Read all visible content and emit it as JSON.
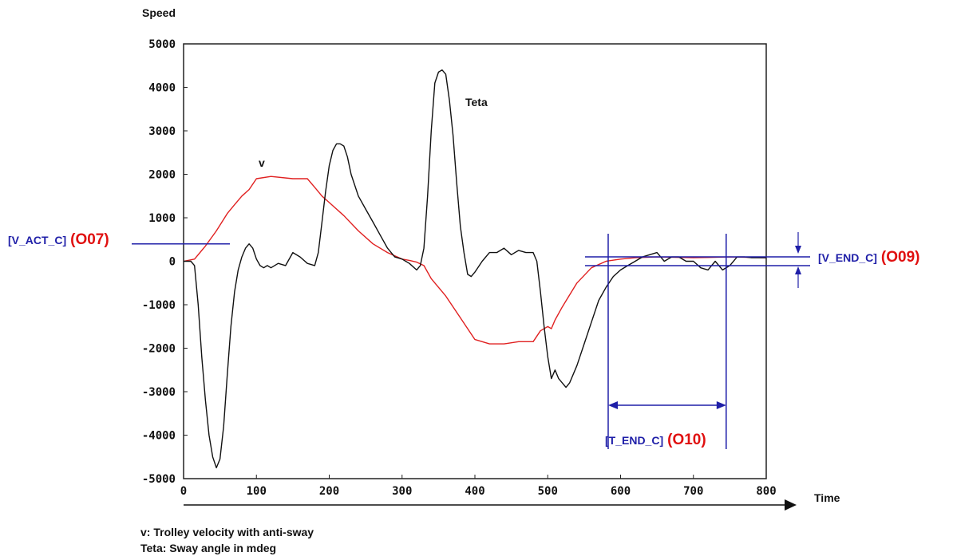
{
  "chart_data": {
    "type": "line",
    "ylabel": "Speed",
    "xlabel": "Time",
    "xlim": [
      0,
      800
    ],
    "ylim": [
      -5000,
      5000
    ],
    "xticks": [
      "0",
      "100",
      "200",
      "300",
      "400",
      "500",
      "600",
      "700",
      "800"
    ],
    "yticks": [
      "5000",
      "4000",
      "3000",
      "2000",
      "1000",
      "0",
      "-1000",
      "-2000",
      "-3000",
      "-4000",
      "-5000"
    ],
    "grid": false,
    "series": [
      {
        "name": "v",
        "color": "#e02020",
        "x": [
          0,
          15,
          30,
          45,
          60,
          70,
          80,
          90,
          100,
          120,
          150,
          170,
          180,
          190,
          200,
          220,
          240,
          260,
          280,
          300,
          310,
          320,
          330,
          340,
          360,
          380,
          400,
          420,
          440,
          460,
          480,
          490,
          500,
          505,
          510,
          520,
          540,
          560,
          580,
          600,
          620,
          650,
          700,
          750,
          800
        ],
        "y": [
          0,
          50,
          350,
          700,
          1100,
          1300,
          1500,
          1650,
          1900,
          1950,
          1900,
          1900,
          1700,
          1500,
          1350,
          1050,
          700,
          400,
          200,
          50,
          20,
          -20,
          -100,
          -400,
          -800,
          -1300,
          -1800,
          -1900,
          -1900,
          -1850,
          -1850,
          -1600,
          -1500,
          -1550,
          -1350,
          -1050,
          -500,
          -150,
          0,
          50,
          80,
          100,
          80,
          100,
          80
        ]
      },
      {
        "name": "Teta",
        "color": "#111111",
        "x": [
          0,
          10,
          15,
          20,
          25,
          30,
          35,
          40,
          45,
          50,
          55,
          60,
          65,
          70,
          75,
          80,
          85,
          90,
          95,
          100,
          105,
          110,
          115,
          120,
          130,
          140,
          150,
          160,
          170,
          180,
          185,
          190,
          195,
          200,
          205,
          210,
          215,
          220,
          225,
          230,
          240,
          250,
          260,
          270,
          280,
          290,
          300,
          310,
          320,
          325,
          330,
          335,
          340,
          345,
          350,
          355,
          360,
          365,
          370,
          375,
          380,
          385,
          390,
          395,
          400,
          410,
          420,
          430,
          440,
          450,
          460,
          470,
          480,
          485,
          490,
          495,
          500,
          505,
          510,
          515,
          520,
          525,
          530,
          540,
          550,
          560,
          570,
          580,
          590,
          600,
          610,
          620,
          630,
          640,
          650,
          660,
          670,
          680,
          690,
          700,
          710,
          720,
          730,
          740,
          750,
          760,
          770,
          780,
          790,
          800
        ],
        "y": [
          0,
          0,
          -100,
          -1000,
          -2200,
          -3200,
          -4000,
          -4500,
          -4750,
          -4550,
          -3800,
          -2600,
          -1500,
          -700,
          -200,
          100,
          300,
          400,
          300,
          50,
          -100,
          -150,
          -100,
          -150,
          -50,
          -100,
          200,
          100,
          -50,
          -100,
          200,
          900,
          1600,
          2200,
          2550,
          2700,
          2700,
          2650,
          2400,
          2000,
          1500,
          1200,
          900,
          600,
          300,
          100,
          50,
          -50,
          -200,
          -100,
          300,
          1500,
          3000,
          4100,
          4350,
          4400,
          4300,
          3700,
          2900,
          1800,
          800,
          200,
          -300,
          -350,
          -250,
          0,
          200,
          200,
          300,
          150,
          250,
          200,
          200,
          0,
          -700,
          -1500,
          -2200,
          -2700,
          -2500,
          -2700,
          -2800,
          -2900,
          -2800,
          -2400,
          -1900,
          -1400,
          -900,
          -600,
          -350,
          -200,
          -100,
          0,
          100,
          150,
          200,
          0,
          100,
          100,
          0,
          0,
          -150,
          -200,
          0,
          -200,
          -100,
          100,
          100,
          80,
          80,
          80
        ]
      }
    ],
    "series_labels": [
      "v",
      "Teta"
    ],
    "footnotes": [
      "v: Trolley velocity with anti-sway",
      "Teta: Sway angle in mdeg"
    ],
    "annotations": {
      "v_act": {
        "label": "[V_ACT_C]",
        "code": "(O07)",
        "value": 400
      },
      "v_end": {
        "label": "[V_END_C]",
        "code": "(O09)",
        "upper": 100,
        "lower": -100
      },
      "t_end": {
        "label": "[T_END_C]",
        "code": "(O10)",
        "start": 583,
        "end": 745
      }
    }
  }
}
